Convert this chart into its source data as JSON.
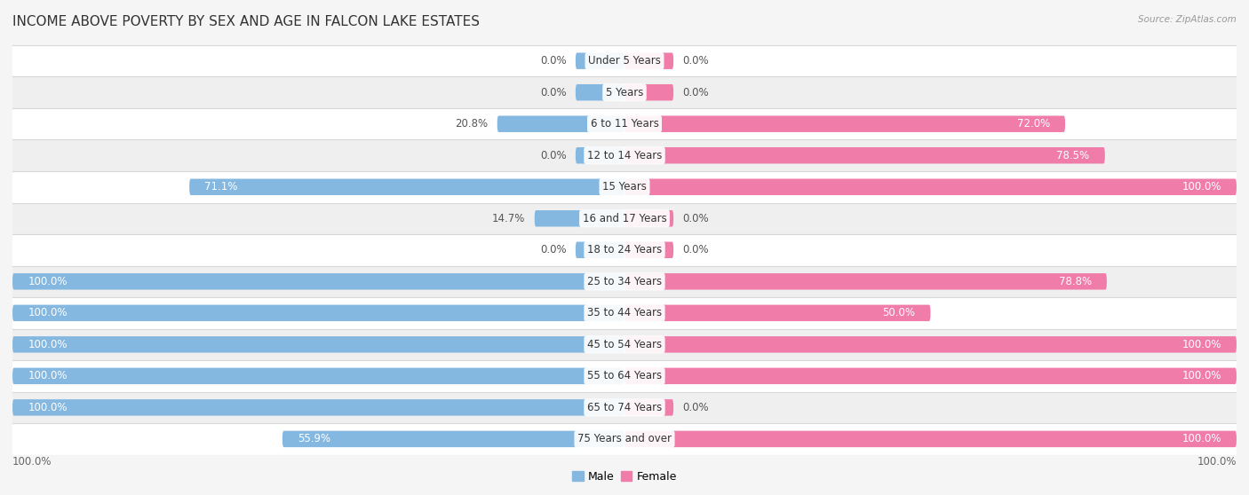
{
  "title": "INCOME ABOVE POVERTY BY SEX AND AGE IN FALCON LAKE ESTATES",
  "source": "Source: ZipAtlas.com",
  "categories": [
    "Under 5 Years",
    "5 Years",
    "6 to 11 Years",
    "12 to 14 Years",
    "15 Years",
    "16 and 17 Years",
    "18 to 24 Years",
    "25 to 34 Years",
    "35 to 44 Years",
    "45 to 54 Years",
    "55 to 64 Years",
    "65 to 74 Years",
    "75 Years and over"
  ],
  "male": [
    0.0,
    0.0,
    20.8,
    0.0,
    71.1,
    14.7,
    0.0,
    100.0,
    100.0,
    100.0,
    100.0,
    100.0,
    55.9
  ],
  "female": [
    0.0,
    0.0,
    72.0,
    78.5,
    100.0,
    0.0,
    0.0,
    78.8,
    50.0,
    100.0,
    100.0,
    0.0,
    100.0
  ],
  "male_color": "#85b8e0",
  "female_color": "#f07caa",
  "row_colors": [
    "#ffffff",
    "#efefef"
  ],
  "separator_color": "#d8d8d8",
  "bg_color": "#f5f5f5",
  "title_fontsize": 11,
  "label_fontsize": 8.5,
  "source_fontsize": 7.5,
  "bar_height": 0.52,
  "xlim": 100,
  "zero_stub": 8
}
